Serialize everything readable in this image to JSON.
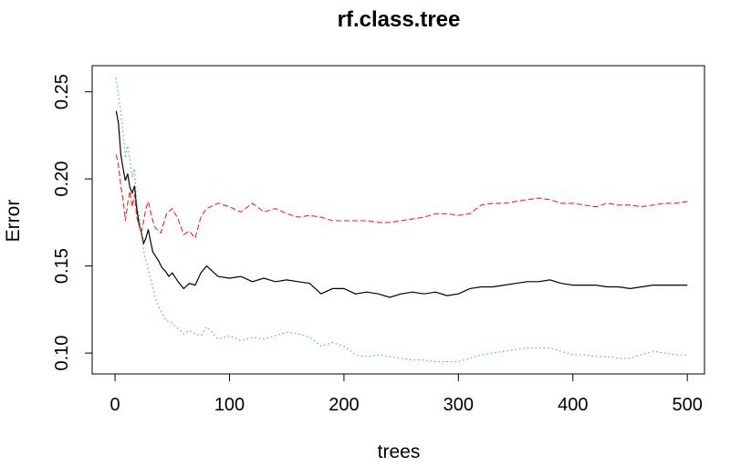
{
  "chart_data": {
    "type": "line",
    "title": "rf.class.tree",
    "xlabel": "trees",
    "ylabel": "Error",
    "xlim": [
      -20,
      515
    ],
    "ylim": [
      0.088,
      0.265
    ],
    "x_ticks": [
      0,
      100,
      200,
      300,
      400,
      500
    ],
    "x_tick_labels": [
      "0",
      "100",
      "200",
      "300",
      "400",
      "500"
    ],
    "y_ticks": [
      0.1,
      0.15,
      0.2,
      0.25
    ],
    "y_tick_labels": [
      "0.10",
      "0.15",
      "0.20",
      "0.25"
    ],
    "grid": false,
    "legend": "none",
    "series": [
      {
        "color": "#000000",
        "dash": "solid",
        "points": [
          [
            1,
            0.239
          ],
          [
            3,
            0.232
          ],
          [
            5,
            0.214
          ],
          [
            7,
            0.206
          ],
          [
            9,
            0.199
          ],
          [
            11,
            0.203
          ],
          [
            13,
            0.195
          ],
          [
            15,
            0.192
          ],
          [
            17,
            0.196
          ],
          [
            19,
            0.183
          ],
          [
            21,
            0.174
          ],
          [
            23,
            0.169
          ],
          [
            25,
            0.163
          ],
          [
            27,
            0.166
          ],
          [
            29,
            0.171
          ],
          [
            31,
            0.164
          ],
          [
            33,
            0.158
          ],
          [
            35,
            0.156
          ],
          [
            38,
            0.153
          ],
          [
            41,
            0.149
          ],
          [
            44,
            0.147
          ],
          [
            47,
            0.144
          ],
          [
            50,
            0.146
          ],
          [
            55,
            0.141
          ],
          [
            60,
            0.137
          ],
          [
            65,
            0.14
          ],
          [
            70,
            0.139
          ],
          [
            75,
            0.146
          ],
          [
            80,
            0.15
          ],
          [
            85,
            0.147
          ],
          [
            90,
            0.144
          ],
          [
            100,
            0.143
          ],
          [
            110,
            0.144
          ],
          [
            120,
            0.141
          ],
          [
            130,
            0.143
          ],
          [
            140,
            0.141
          ],
          [
            150,
            0.142
          ],
          [
            160,
            0.141
          ],
          [
            170,
            0.14
          ],
          [
            180,
            0.134
          ],
          [
            190,
            0.137
          ],
          [
            200,
            0.137
          ],
          [
            210,
            0.134
          ],
          [
            220,
            0.135
          ],
          [
            230,
            0.134
          ],
          [
            240,
            0.132
          ],
          [
            250,
            0.134
          ],
          [
            260,
            0.135
          ],
          [
            270,
            0.134
          ],
          [
            280,
            0.135
          ],
          [
            290,
            0.133
          ],
          [
            300,
            0.134
          ],
          [
            310,
            0.137
          ],
          [
            320,
            0.138
          ],
          [
            330,
            0.138
          ],
          [
            340,
            0.139
          ],
          [
            350,
            0.14
          ],
          [
            360,
            0.141
          ],
          [
            370,
            0.141
          ],
          [
            380,
            0.142
          ],
          [
            390,
            0.14
          ],
          [
            400,
            0.139
          ],
          [
            410,
            0.139
          ],
          [
            420,
            0.139
          ],
          [
            430,
            0.138
          ],
          [
            440,
            0.138
          ],
          [
            450,
            0.137
          ],
          [
            460,
            0.138
          ],
          [
            470,
            0.139
          ],
          [
            480,
            0.139
          ],
          [
            490,
            0.139
          ],
          [
            500,
            0.139
          ]
        ]
      },
      {
        "color": "#ee2222",
        "dash": "dashed",
        "points": [
          [
            1,
            0.214
          ],
          [
            3,
            0.208
          ],
          [
            5,
            0.196
          ],
          [
            7,
            0.188
          ],
          [
            9,
            0.176
          ],
          [
            11,
            0.186
          ],
          [
            13,
            0.193
          ],
          [
            15,
            0.184
          ],
          [
            17,
            0.191
          ],
          [
            19,
            0.178
          ],
          [
            21,
            0.173
          ],
          [
            23,
            0.169
          ],
          [
            25,
            0.176
          ],
          [
            27,
            0.183
          ],
          [
            29,
            0.187
          ],
          [
            31,
            0.181
          ],
          [
            33,
            0.176
          ],
          [
            35,
            0.172
          ],
          [
            40,
            0.169
          ],
          [
            45,
            0.18
          ],
          [
            50,
            0.183
          ],
          [
            55,
            0.177
          ],
          [
            60,
            0.168
          ],
          [
            65,
            0.17
          ],
          [
            70,
            0.166
          ],
          [
            75,
            0.178
          ],
          [
            80,
            0.183
          ],
          [
            90,
            0.186
          ],
          [
            100,
            0.184
          ],
          [
            110,
            0.181
          ],
          [
            120,
            0.186
          ],
          [
            130,
            0.181
          ],
          [
            140,
            0.183
          ],
          [
            150,
            0.18
          ],
          [
            160,
            0.178
          ],
          [
            170,
            0.179
          ],
          [
            180,
            0.178
          ],
          [
            190,
            0.176
          ],
          [
            200,
            0.176
          ],
          [
            210,
            0.176
          ],
          [
            220,
            0.176
          ],
          [
            230,
            0.175
          ],
          [
            240,
            0.175
          ],
          [
            250,
            0.176
          ],
          [
            260,
            0.177
          ],
          [
            270,
            0.178
          ],
          [
            280,
            0.18
          ],
          [
            290,
            0.18
          ],
          [
            300,
            0.179
          ],
          [
            310,
            0.18
          ],
          [
            320,
            0.185
          ],
          [
            330,
            0.186
          ],
          [
            340,
            0.186
          ],
          [
            350,
            0.187
          ],
          [
            360,
            0.188
          ],
          [
            370,
            0.189
          ],
          [
            380,
            0.188
          ],
          [
            390,
            0.186
          ],
          [
            400,
            0.186
          ],
          [
            410,
            0.185
          ],
          [
            420,
            0.184
          ],
          [
            430,
            0.186
          ],
          [
            440,
            0.185
          ],
          [
            450,
            0.185
          ],
          [
            460,
            0.184
          ],
          [
            470,
            0.185
          ],
          [
            480,
            0.186
          ],
          [
            490,
            0.186
          ],
          [
            500,
            0.187
          ]
        ]
      },
      {
        "color": "#33cc33",
        "dash": "dotted",
        "points": [
          [
            1,
            0.258
          ],
          [
            3,
            0.248
          ],
          [
            5,
            0.238
          ],
          [
            7,
            0.226
          ],
          [
            9,
            0.212
          ],
          [
            11,
            0.219
          ],
          [
            13,
            0.211
          ],
          [
            15,
            0.201
          ],
          [
            17,
            0.206
          ],
          [
            19,
            0.186
          ],
          [
            21,
            0.179
          ],
          [
            23,
            0.169
          ],
          [
            25,
            0.159
          ],
          [
            27,
            0.153
          ],
          [
            29,
            0.148
          ],
          [
            31,
            0.143
          ],
          [
            33,
            0.138
          ],
          [
            35,
            0.132
          ],
          [
            38,
            0.127
          ],
          [
            41,
            0.123
          ],
          [
            44,
            0.119
          ],
          [
            47,
            0.118
          ],
          [
            50,
            0.117
          ],
          [
            55,
            0.114
          ],
          [
            60,
            0.111
          ],
          [
            65,
            0.113
          ],
          [
            70,
            0.111
          ],
          [
            75,
            0.11
          ],
          [
            80,
            0.115
          ],
          [
            85,
            0.112
          ],
          [
            90,
            0.108
          ],
          [
            100,
            0.11
          ],
          [
            110,
            0.107
          ],
          [
            120,
            0.109
          ],
          [
            130,
            0.108
          ],
          [
            140,
            0.11
          ],
          [
            150,
            0.112
          ],
          [
            160,
            0.111
          ],
          [
            170,
            0.109
          ],
          [
            180,
            0.104
          ],
          [
            190,
            0.106
          ],
          [
            200,
            0.104
          ],
          [
            210,
            0.099
          ],
          [
            220,
            0.098
          ],
          [
            230,
            0.099
          ],
          [
            240,
            0.098
          ],
          [
            250,
            0.097
          ],
          [
            260,
            0.096
          ],
          [
            270,
            0.096
          ],
          [
            280,
            0.095
          ],
          [
            290,
            0.095
          ],
          [
            300,
            0.095
          ],
          [
            310,
            0.097
          ],
          [
            320,
            0.099
          ],
          [
            330,
            0.1
          ],
          [
            340,
            0.101
          ],
          [
            350,
            0.102
          ],
          [
            360,
            0.103
          ],
          [
            370,
            0.103
          ],
          [
            380,
            0.103
          ],
          [
            390,
            0.101
          ],
          [
            400,
            0.099
          ],
          [
            410,
            0.099
          ],
          [
            420,
            0.098
          ],
          [
            430,
            0.098
          ],
          [
            440,
            0.097
          ],
          [
            450,
            0.097
          ],
          [
            460,
            0.099
          ],
          [
            470,
            0.101
          ],
          [
            480,
            0.1
          ],
          [
            490,
            0.099
          ],
          [
            500,
            0.099
          ]
        ]
      }
    ]
  }
}
